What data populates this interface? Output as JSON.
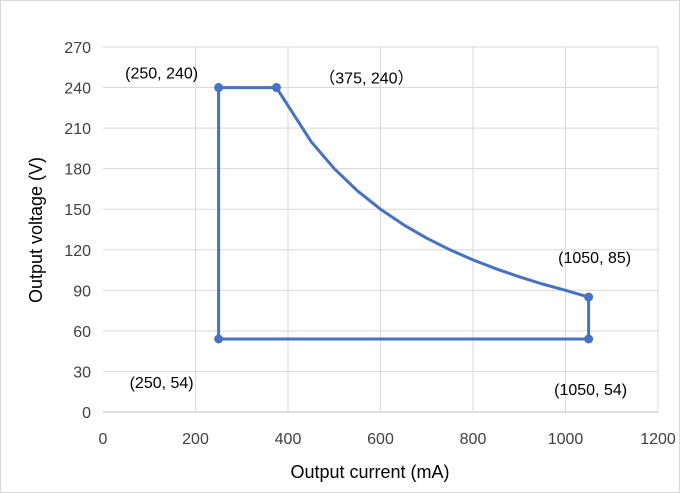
{
  "chart_data": {
    "type": "scatter",
    "title": "",
    "xlabel": "Output current (mA)",
    "ylabel": "Output voltage (V)",
    "xlim": [
      0,
      1200
    ],
    "ylim": [
      0,
      270
    ],
    "xticks": [
      0,
      200,
      400,
      600,
      800,
      1000,
      1200
    ],
    "yticks": [
      0,
      30,
      60,
      90,
      120,
      150,
      180,
      210,
      240,
      270
    ],
    "grid": true,
    "legend": "none",
    "color": "#4472c4",
    "series": [
      {
        "points": [
          [
            250,
            54
          ],
          [
            250,
            240
          ],
          [
            375,
            240
          ],
          [
            450,
            200
          ],
          [
            500,
            180
          ],
          [
            550,
            163.6
          ],
          [
            600,
            150
          ],
          [
            650,
            138.5
          ],
          [
            700,
            128.6
          ],
          [
            750,
            120
          ],
          [
            800,
            112.5
          ],
          [
            850,
            105.9
          ],
          [
            900,
            100
          ],
          [
            950,
            94.7
          ],
          [
            1000,
            90
          ],
          [
            1050,
            85
          ],
          [
            1050,
            54
          ],
          [
            250,
            54
          ]
        ]
      }
    ],
    "markers": [
      [
        250,
        240
      ],
      [
        375,
        240
      ],
      [
        1050,
        85
      ],
      [
        1050,
        54
      ],
      [
        250,
        54
      ]
    ],
    "annotations": [
      {
        "text": "(250, 240)",
        "x": 250,
        "y": 240
      },
      {
        "text": "（375, 240）",
        "x": 375,
        "y": 240
      },
      {
        "text": "(1050, 85)",
        "x": 1050,
        "y": 85
      },
      {
        "text": "(250, 54)",
        "x": 250,
        "y": 54
      },
      {
        "text": "(1050, 54)",
        "x": 1050,
        "y": 54
      }
    ]
  }
}
